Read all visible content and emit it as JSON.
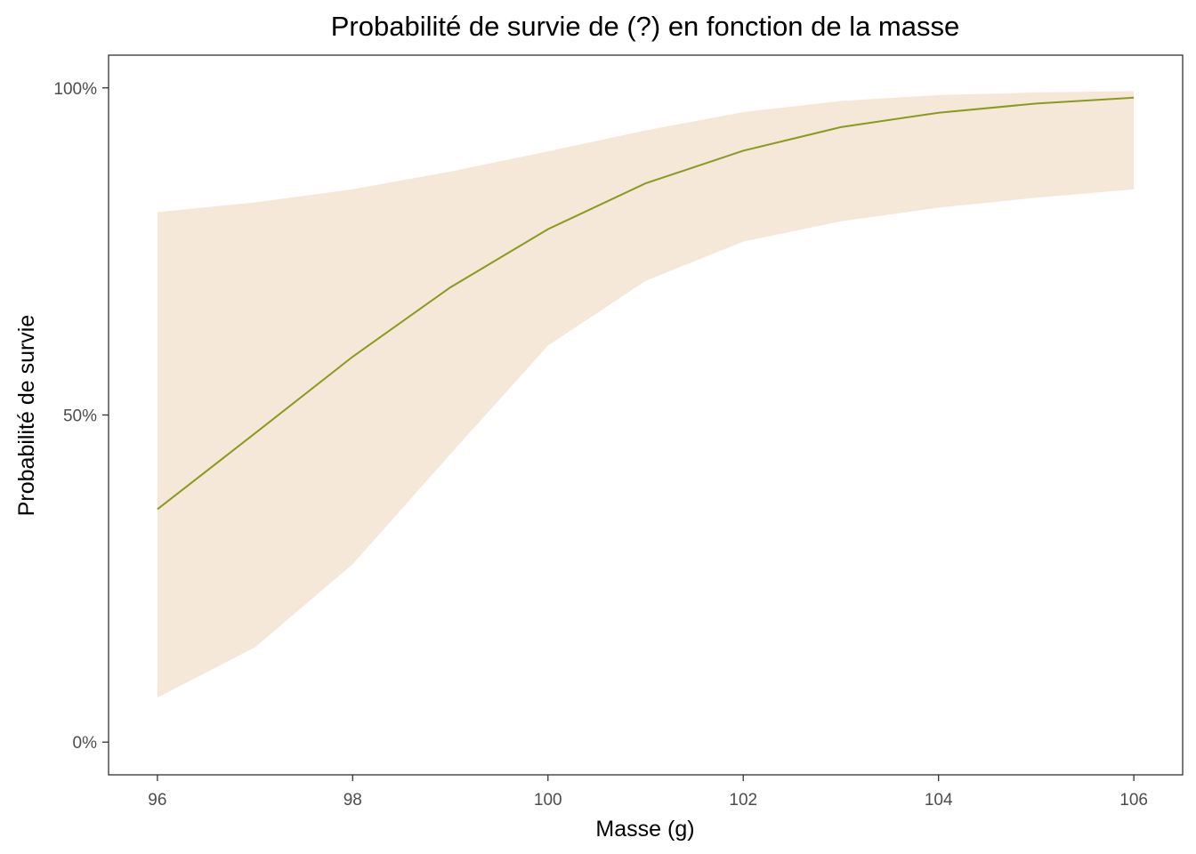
{
  "chart_data": {
    "type": "area",
    "title": "Probabilité de survie de (?) en fonction de la masse",
    "xlabel": "Masse (g)",
    "ylabel": "Probabilité de survie",
    "xlim": [
      95.5,
      106.5
    ],
    "ylim": [
      -0.05,
      1.05
    ],
    "x_ticks": [
      96,
      98,
      100,
      102,
      104,
      106
    ],
    "x_tick_labels": [
      "96",
      "98",
      "100",
      "102",
      "104",
      "106"
    ],
    "y_ticks": [
      0,
      0.5,
      1
    ],
    "y_tick_labels": [
      "0%",
      "50%",
      "100%"
    ],
    "grid": false,
    "x": [
      96,
      97,
      98,
      99,
      100,
      101,
      102,
      103,
      104,
      105,
      106
    ],
    "series": [
      {
        "type": "line",
        "color": "#8a9a1f",
        "values": [
          0.356,
          0.472,
          0.589,
          0.695,
          0.784,
          0.854,
          0.904,
          0.94,
          0.962,
          0.976,
          0.985
        ]
      },
      {
        "type": "ribbon",
        "color": "#f5e8d8",
        "lower": [
          0.068,
          0.145,
          0.272,
          0.44,
          0.606,
          0.705,
          0.765,
          0.796,
          0.817,
          0.832,
          0.845
        ],
        "upper": [
          0.81,
          0.825,
          0.845,
          0.872,
          0.903,
          0.935,
          0.963,
          0.98,
          0.989,
          0.993,
          0.995
        ]
      }
    ]
  }
}
